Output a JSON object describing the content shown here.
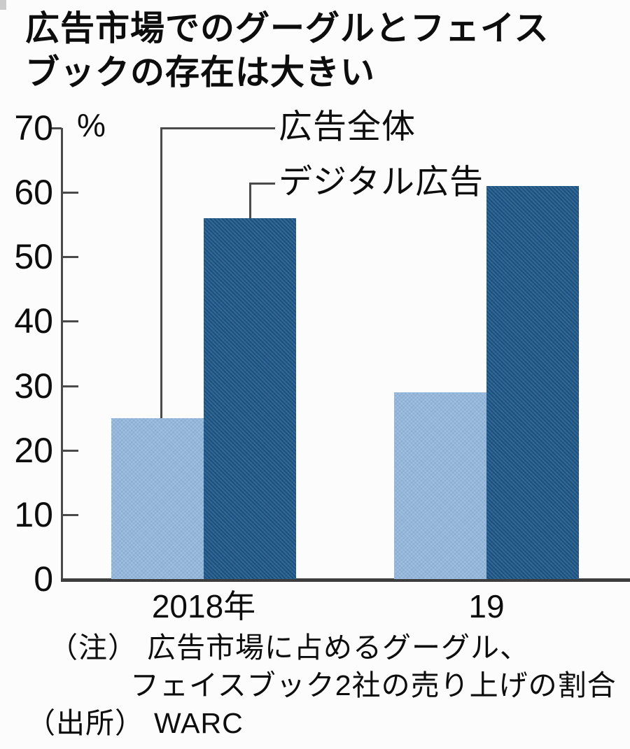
{
  "title": "広告市場でのグーグルとフェイス\nブックの存在は大きい",
  "chart_data": {
    "type": "bar",
    "title": "広告市場でのグーグルとフェイスブックの存在は大きい",
    "categories": [
      "2018年",
      "19"
    ],
    "series": [
      {
        "name": "広告全体",
        "values": [
          25,
          29
        ],
        "color": "#93b7dd"
      },
      {
        "name": "デジタル広告",
        "values": [
          56,
          61
        ],
        "color": "#1a5485"
      }
    ],
    "unit_label": "%",
    "ylim": [
      0,
      70
    ],
    "yticks": [
      0,
      10,
      20,
      30,
      40,
      50,
      60,
      70
    ],
    "grid": false,
    "legend_style": "callout-labels",
    "axis_color": "#4a4a4a"
  },
  "notes": {
    "note_prefix": "（注）",
    "note_line1": "広告市場に占めるグーグル、",
    "note_line2": "フェイスブック2社の売り上げの割合",
    "source_prefix": "（出所）",
    "source_value": "WARC"
  }
}
